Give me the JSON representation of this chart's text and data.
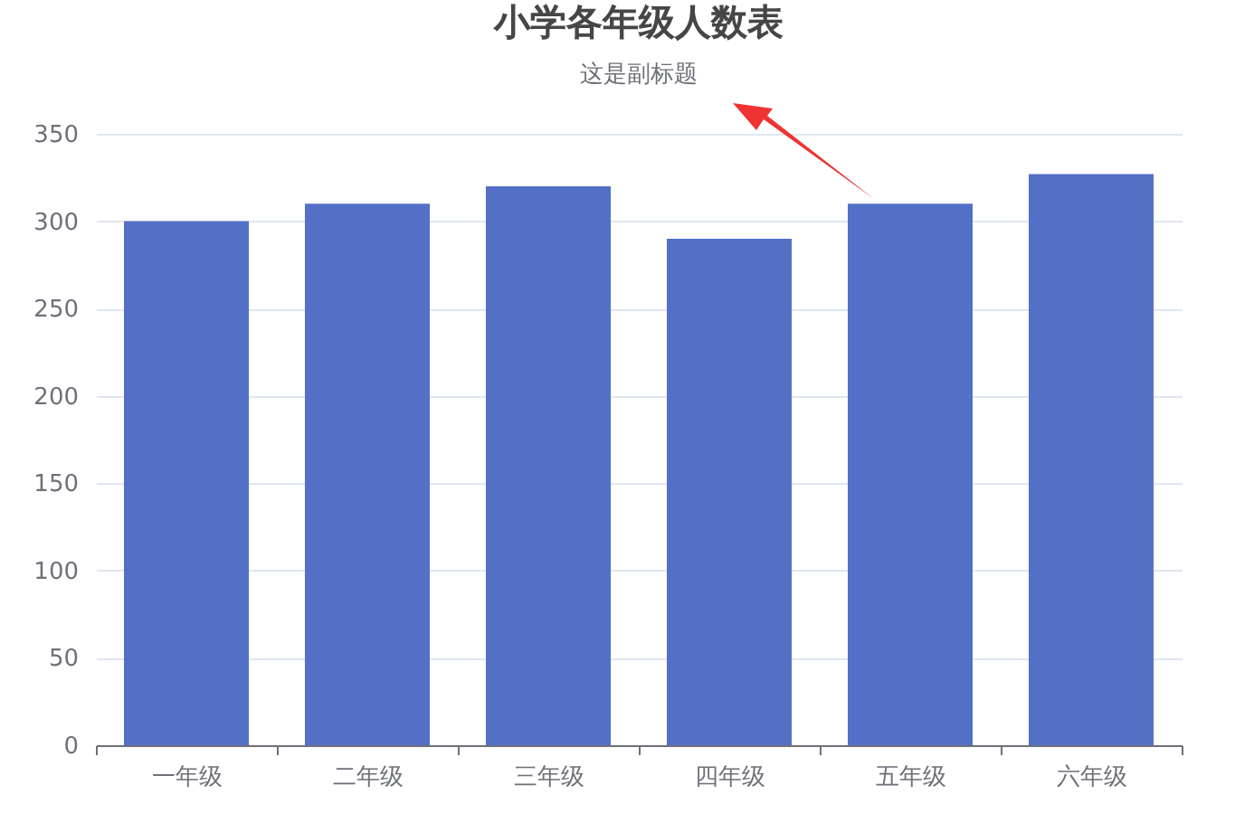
{
  "chart_data": {
    "type": "bar",
    "title": "小学各年级人数表",
    "subtitle": "这是副标题",
    "categories": [
      "一年级",
      "二年级",
      "三年级",
      "四年级",
      "五年级",
      "六年级"
    ],
    "values": [
      300,
      310,
      320,
      290,
      310,
      327
    ],
    "color": "#5470c6",
    "ylim": [
      0,
      350
    ],
    "yticks": [
      0,
      50,
      100,
      150,
      200,
      250,
      300,
      350
    ],
    "grid": "y"
  }
}
